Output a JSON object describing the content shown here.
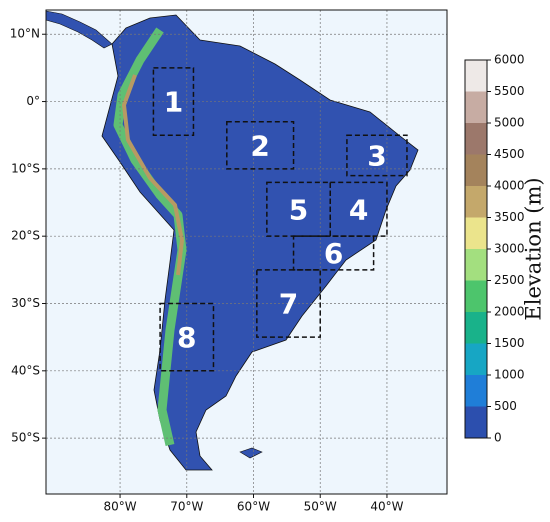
{
  "map": {
    "xlim": [
      -91.1,
      -31
    ],
    "ylim": [
      -58.3,
      13.6
    ],
    "xticks": [
      {
        "value": -80,
        "label": "80°W"
      },
      {
        "value": -70,
        "label": "70°W"
      },
      {
        "value": -60,
        "label": "60°W"
      },
      {
        "value": -50,
        "label": "50°W"
      },
      {
        "value": -40,
        "label": "40°W"
      }
    ],
    "yticks": [
      {
        "value": 10,
        "label": "10°N"
      },
      {
        "value": 0,
        "label": "0°"
      },
      {
        "value": -10,
        "label": "10°S"
      },
      {
        "value": -20,
        "label": "20°S"
      },
      {
        "value": -30,
        "label": "30°S"
      },
      {
        "value": -40,
        "label": "40°S"
      },
      {
        "value": -50,
        "label": "50°S"
      }
    ],
    "grid": true,
    "regions": [
      {
        "label": "1",
        "lon": [
          -75,
          -69
        ],
        "lat": [
          -5,
          5
        ]
      },
      {
        "label": "2",
        "lon": [
          -64,
          -54
        ],
        "lat": [
          -10,
          -3
        ]
      },
      {
        "label": "3",
        "lon": [
          -46,
          -37
        ],
        "lat": [
          -11,
          -5
        ]
      },
      {
        "label": "4",
        "lon": [
          -48.5,
          -40
        ],
        "lat": [
          -20,
          -12
        ]
      },
      {
        "label": "5",
        "lon": [
          -58,
          -48.5
        ],
        "lat": [
          -20,
          -12
        ]
      },
      {
        "label": "6",
        "lon": [
          -54,
          -42
        ],
        "lat": [
          -25,
          -20
        ]
      },
      {
        "label": "7",
        "lon": [
          -59.5,
          -50
        ],
        "lat": [
          -35,
          -25
        ]
      },
      {
        "label": "8",
        "lon": [
          -74,
          -66
        ],
        "lat": [
          -40,
          -30
        ]
      }
    ]
  },
  "colorbar": {
    "label": "Elevation (m)",
    "lim": [
      0,
      6000
    ],
    "ticks": [
      0,
      500,
      1000,
      1500,
      2000,
      2500,
      3000,
      3500,
      4000,
      4500,
      5000,
      5500,
      6000
    ],
    "colors": [
      "#2c4fae",
      "#1f7ed8",
      "#17a6c4",
      "#19b28a",
      "#4dc56c",
      "#a3df7f",
      "#ebe48c",
      "#c4a86b",
      "#a4835c",
      "#9c786b",
      "#c7aca3",
      "#eee9e7"
    ]
  }
}
